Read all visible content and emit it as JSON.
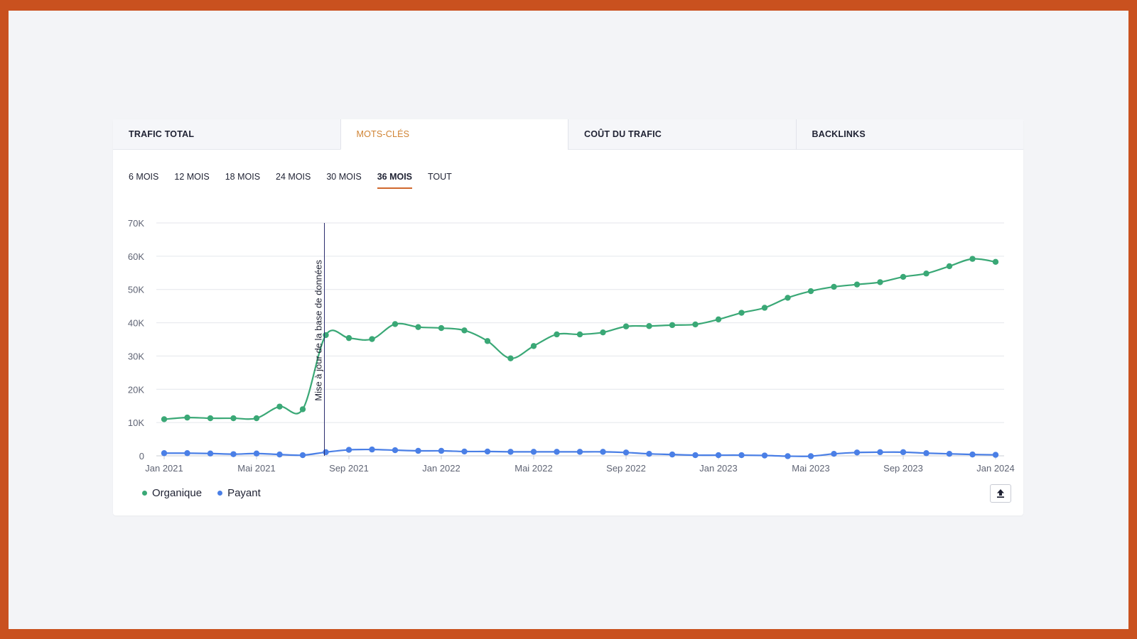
{
  "tabs": [
    {
      "label": "TRAFIC TOTAL",
      "active": false
    },
    {
      "label": "MOTS-CLÉS",
      "active": true
    },
    {
      "label": "COÛT DU TRAFIC",
      "active": false
    },
    {
      "label": "BACKLINKS",
      "active": false
    }
  ],
  "ranges": [
    {
      "label": "6 MOIS",
      "active": false
    },
    {
      "label": "12 MOIS",
      "active": false
    },
    {
      "label": "18 MOIS",
      "active": false
    },
    {
      "label": "24 MOIS",
      "active": false
    },
    {
      "label": "30 MOIS",
      "active": false
    },
    {
      "label": "36 MOIS",
      "active": true
    },
    {
      "label": "TOUT",
      "active": false
    }
  ],
  "legend": {
    "organique": "Organique",
    "payant": "Payant"
  },
  "colors": {
    "accent": "#d0682e",
    "active_tab_text": "#d08333",
    "organique": "#3aa876",
    "payant": "#4a7fe6",
    "annotation": "#2b2d6e"
  },
  "export": {
    "icon": "upload-icon"
  },
  "chart_data": {
    "type": "line",
    "x": [
      "Jan 2021",
      "Feb 2021",
      "Mar 2021",
      "Apr 2021",
      "Mai 2021",
      "Jun 2021",
      "Jul 2021",
      "Aug 2021",
      "Sep 2021",
      "Oct 2021",
      "Nov 2021",
      "Dec 2021",
      "Jan 2022",
      "Feb 2022",
      "Mar 2022",
      "Apr 2022",
      "Mai 2022",
      "Jun 2022",
      "Jul 2022",
      "Aug 2022",
      "Sep 2022",
      "Oct 2022",
      "Nov 2022",
      "Dec 2022",
      "Jan 2023",
      "Feb 2023",
      "Mar 2023",
      "Apr 2023",
      "Mai 2023",
      "Jun 2023",
      "Jul 2023",
      "Aug 2023",
      "Sep 2023",
      "Oct 2023",
      "Nov 2023",
      "Dec 2023",
      "Jan 2024"
    ],
    "xticks": [
      "Jan 2021",
      "Mai 2021",
      "Sep 2021",
      "Jan 2022",
      "Mai 2022",
      "Sep 2022",
      "Jan 2023",
      "Mai 2023",
      "Sep 2023",
      "Jan 2024"
    ],
    "yticks": [
      "0",
      "10K",
      "20K",
      "30K",
      "40K",
      "50K",
      "60K",
      "70K"
    ],
    "ylim": [
      0,
      70000
    ],
    "grid": true,
    "legend_position": "bottom-left",
    "series": [
      {
        "name": "Organique",
        "values": [
          11000,
          11500,
          11300,
          11300,
          11300,
          14800,
          14000,
          36300,
          35400,
          35100,
          39600,
          38700,
          38400,
          37700,
          34500,
          29300,
          33000,
          36500,
          36500,
          37100,
          38900,
          39000,
          39300,
          39500,
          41000,
          43000,
          44500,
          47500,
          49500,
          50800,
          51500,
          52200,
          53800,
          54800,
          57000,
          59200,
          58300
        ]
      },
      {
        "name": "Payant",
        "values": [
          800,
          800,
          700,
          500,
          700,
          400,
          200,
          1100,
          1800,
          1900,
          1700,
          1500,
          1500,
          1300,
          1300,
          1200,
          1200,
          1200,
          1200,
          1200,
          1000,
          600,
          400,
          200,
          200,
          200,
          100,
          -100,
          -100,
          600,
          1000,
          1100,
          1100,
          800,
          600,
          400,
          300
        ]
      }
    ],
    "annotation": {
      "x": "Aug 2021",
      "label": "Mise à jour de la base de données"
    }
  }
}
